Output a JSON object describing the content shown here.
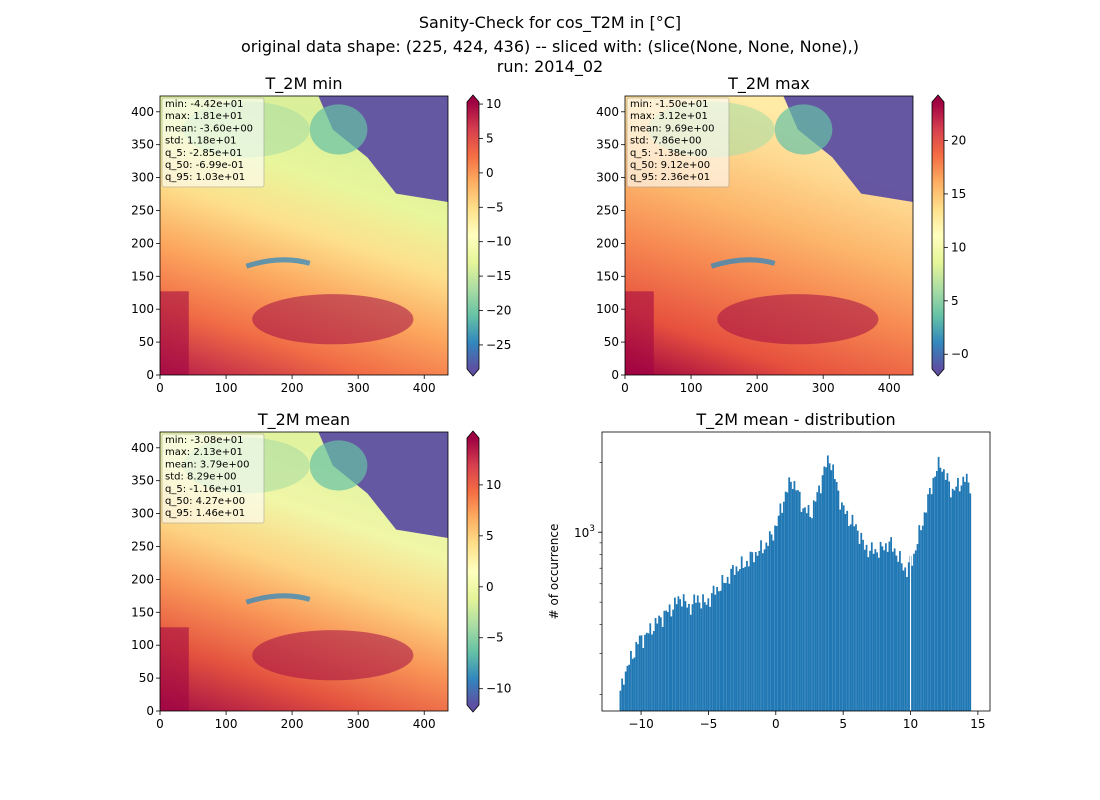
{
  "figure": {
    "suptitle_lines": [
      "Sanity-Check for cos_T2M in [°C]",
      "original data shape: (225, 424, 436) -- sliced with: (slice(None, None, None),)",
      "run: 2014_02"
    ]
  },
  "chart_data": [
    {
      "type": "heatmap",
      "title": "T_2M min",
      "colormap": "Spectral_r",
      "x_ticks": [
        0,
        100,
        200,
        300,
        400
      ],
      "y_ticks": [
        0,
        50,
        100,
        150,
        200,
        250,
        300,
        350,
        400
      ],
      "xlim": [
        0,
        436
      ],
      "ylim": [
        0,
        424
      ],
      "colorbar": {
        "ticks": [
          10,
          5,
          0,
          -5,
          -10,
          -15,
          -20,
          -25
        ],
        "tick_labels": [
          "10",
          "5",
          "0",
          "−5",
          "−10",
          "−15",
          "−20",
          "−25"
        ],
        "vmin": -28.5,
        "vmax": 10.3
      },
      "stats": [
        "min: -4.42e+01",
        "max: 1.81e+01",
        "mean: -3.60e+00",
        "std: 1.18e+01",
        "q_5: -2.85e+01",
        "q_50: -6.99e-01",
        "q_95: 1.03e+01"
      ]
    },
    {
      "type": "heatmap",
      "title": "T_2M max",
      "colormap": "Spectral_r",
      "x_ticks": [
        0,
        100,
        200,
        300,
        400
      ],
      "y_ticks": [
        0,
        50,
        100,
        150,
        200,
        250,
        300,
        350,
        400
      ],
      "xlim": [
        0,
        436
      ],
      "ylim": [
        0,
        424
      ],
      "colorbar": {
        "ticks": [
          20,
          15,
          10,
          5,
          0
        ],
        "tick_labels": [
          "20",
          "15",
          "10",
          "5",
          "−0"
        ],
        "vmin": -1.38,
        "vmax": 23.6
      },
      "stats": [
        "min: -1.50e+01",
        "max: 3.12e+01",
        "mean: 9.69e+00",
        "std: 7.86e+00",
        "q_5: -1.38e+00",
        "q_50: 9.12e+00",
        "q_95: 2.36e+01"
      ]
    },
    {
      "type": "heatmap",
      "title": "T_2M mean",
      "colormap": "Spectral_r",
      "x_ticks": [
        0,
        100,
        200,
        300,
        400
      ],
      "y_ticks": [
        0,
        50,
        100,
        150,
        200,
        250,
        300,
        350,
        400
      ],
      "xlim": [
        0,
        436
      ],
      "ylim": [
        0,
        424
      ],
      "colorbar": {
        "ticks": [
          10,
          5,
          0,
          -5,
          -10
        ],
        "tick_labels": [
          "10",
          "5",
          "0",
          "−5",
          "−10"
        ],
        "vmin": -11.6,
        "vmax": 14.6
      },
      "stats": [
        "min: -3.08e+01",
        "max: 2.13e+01",
        "mean: 3.79e+00",
        "std: 8.29e+00",
        "q_5: -1.16e+01",
        "q_50: 4.27e+00",
        "q_95: 1.46e+01"
      ]
    },
    {
      "type": "bar",
      "title": "T_2M mean - distribution",
      "ylabel": "# of occurrence",
      "yscale": "log",
      "xlim": [
        -12.9,
        15.9
      ],
      "ylim": [
        170,
        2700
      ],
      "x_ticks": [
        -10,
        -5,
        0,
        5,
        10,
        15
      ],
      "x_tick_labels": [
        "−10",
        "−5",
        "0",
        "5",
        "10",
        "15"
      ],
      "y_major_ticks": [
        1000
      ],
      "y_major_tick_labels": [
        "10^3"
      ],
      "y_minor_ticks": [
        200,
        300,
        400,
        500,
        600,
        700,
        800,
        900,
        2000
      ],
      "bar_color": "#1f77b4",
      "anchors": [
        [
          -11.6,
          190
        ],
        [
          -11.3,
          240
        ],
        [
          -10.8,
          280
        ],
        [
          -10.2,
          340
        ],
        [
          -9.6,
          360
        ],
        [
          -9.0,
          400
        ],
        [
          -8.3,
          440
        ],
        [
          -7.6,
          480
        ],
        [
          -7.0,
          530
        ],
        [
          -6.5,
          470
        ],
        [
          -5.8,
          520
        ],
        [
          -5.2,
          490
        ],
        [
          -4.5,
          560
        ],
        [
          -3.8,
          610
        ],
        [
          -3.0,
          700
        ],
        [
          -2.4,
          720
        ],
        [
          -1.6,
          800
        ],
        [
          -0.9,
          860
        ],
        [
          -0.3,
          960
        ],
        [
          0.1,
          1100
        ],
        [
          0.7,
          1450
        ],
        [
          1.2,
          1700
        ],
        [
          1.6,
          1500
        ],
        [
          2.1,
          1250
        ],
        [
          2.6,
          1200
        ],
        [
          3.1,
          1450
        ],
        [
          3.6,
          1850
        ],
        [
          4.0,
          2100
        ],
        [
          4.4,
          1700
        ],
        [
          4.9,
          1300
        ],
        [
          5.4,
          1150
        ],
        [
          6.0,
          1050
        ],
        [
          6.6,
          860
        ],
        [
          7.2,
          830
        ],
        [
          7.8,
          840
        ],
        [
          8.4,
          900
        ],
        [
          8.8,
          850
        ],
        [
          9.3,
          740
        ],
        [
          9.7,
          680
        ],
        [
          10.2,
          780
        ],
        [
          10.7,
          1000
        ],
        [
          11.2,
          1300
        ],
        [
          11.7,
          1700
        ],
        [
          12.2,
          2000
        ],
        [
          12.6,
          1750
        ],
        [
          13.1,
          1500
        ],
        [
          13.6,
          1600
        ],
        [
          14.0,
          1700
        ],
        [
          14.5,
          1600
        ]
      ],
      "gap_at_x": 10.0
    }
  ]
}
